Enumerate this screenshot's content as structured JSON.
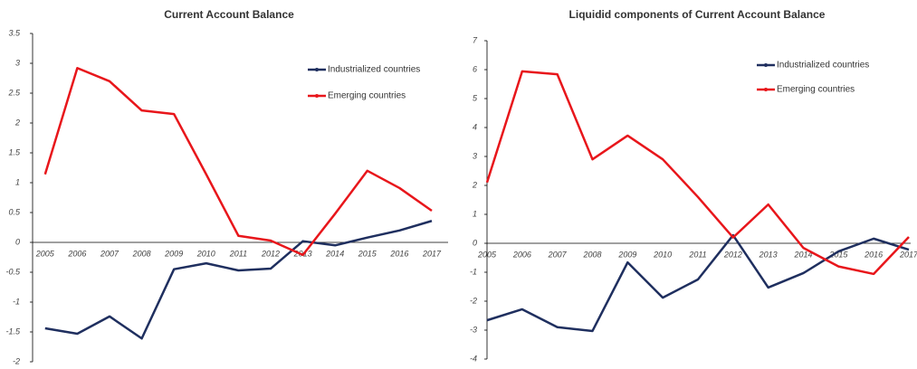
{
  "chart_data": [
    {
      "type": "line",
      "title": "Current Account Balance",
      "categories": [
        "2005",
        "2006",
        "2007",
        "2008",
        "2009",
        "2010",
        "2011",
        "2012",
        "2013",
        "2014",
        "2015",
        "2016",
        "2017"
      ],
      "series": [
        {
          "name": "Industrialized countries",
          "color": "#1f2f5f",
          "values": [
            -1.44,
            -1.53,
            -1.24,
            -1.61,
            -0.45,
            -0.35,
            -0.47,
            -0.44,
            0.02,
            -0.05,
            0.08,
            0.2,
            0.36
          ]
        },
        {
          "name": "Emerging countries",
          "color": "#e8161b",
          "values": [
            1.14,
            2.92,
            2.7,
            2.21,
            2.15,
            1.14,
            0.11,
            0.03,
            -0.21,
            0.48,
            1.2,
            0.91,
            0.53
          ]
        }
      ],
      "ylim": [
        -2,
        3.5
      ],
      "yticks": [
        -2,
        -1.5,
        -1,
        -0.5,
        0,
        0.5,
        1,
        1.5,
        2,
        2.5,
        3,
        3.5
      ]
    },
    {
      "type": "line",
      "title": "Liquidid components of Current Account Balance",
      "categories": [
        "2005",
        "2006",
        "2007",
        "2008",
        "2009",
        "2010",
        "2011",
        "2012",
        "2013",
        "2014",
        "2015",
        "2016",
        "2017"
      ],
      "series": [
        {
          "name": "Industrialized countries",
          "color": "#1f2f5f",
          "values": [
            -2.66,
            -2.28,
            -2.9,
            -3.03,
            -0.66,
            -1.88,
            -1.25,
            0.28,
            -1.53,
            -1.03,
            -0.28,
            0.16,
            -0.22
          ]
        },
        {
          "name": "Emerging countries",
          "color": "#e8161b",
          "values": [
            2.1,
            5.94,
            5.84,
            2.9,
            3.72,
            2.9,
            1.6,
            0.2,
            1.34,
            -0.16,
            -0.8,
            -1.06,
            0.22
          ]
        }
      ],
      "ylim": [
        -4,
        7
      ],
      "yticks": [
        -4,
        -3,
        -2,
        -1,
        0,
        1,
        2,
        3,
        4,
        5,
        6,
        7
      ]
    }
  ]
}
